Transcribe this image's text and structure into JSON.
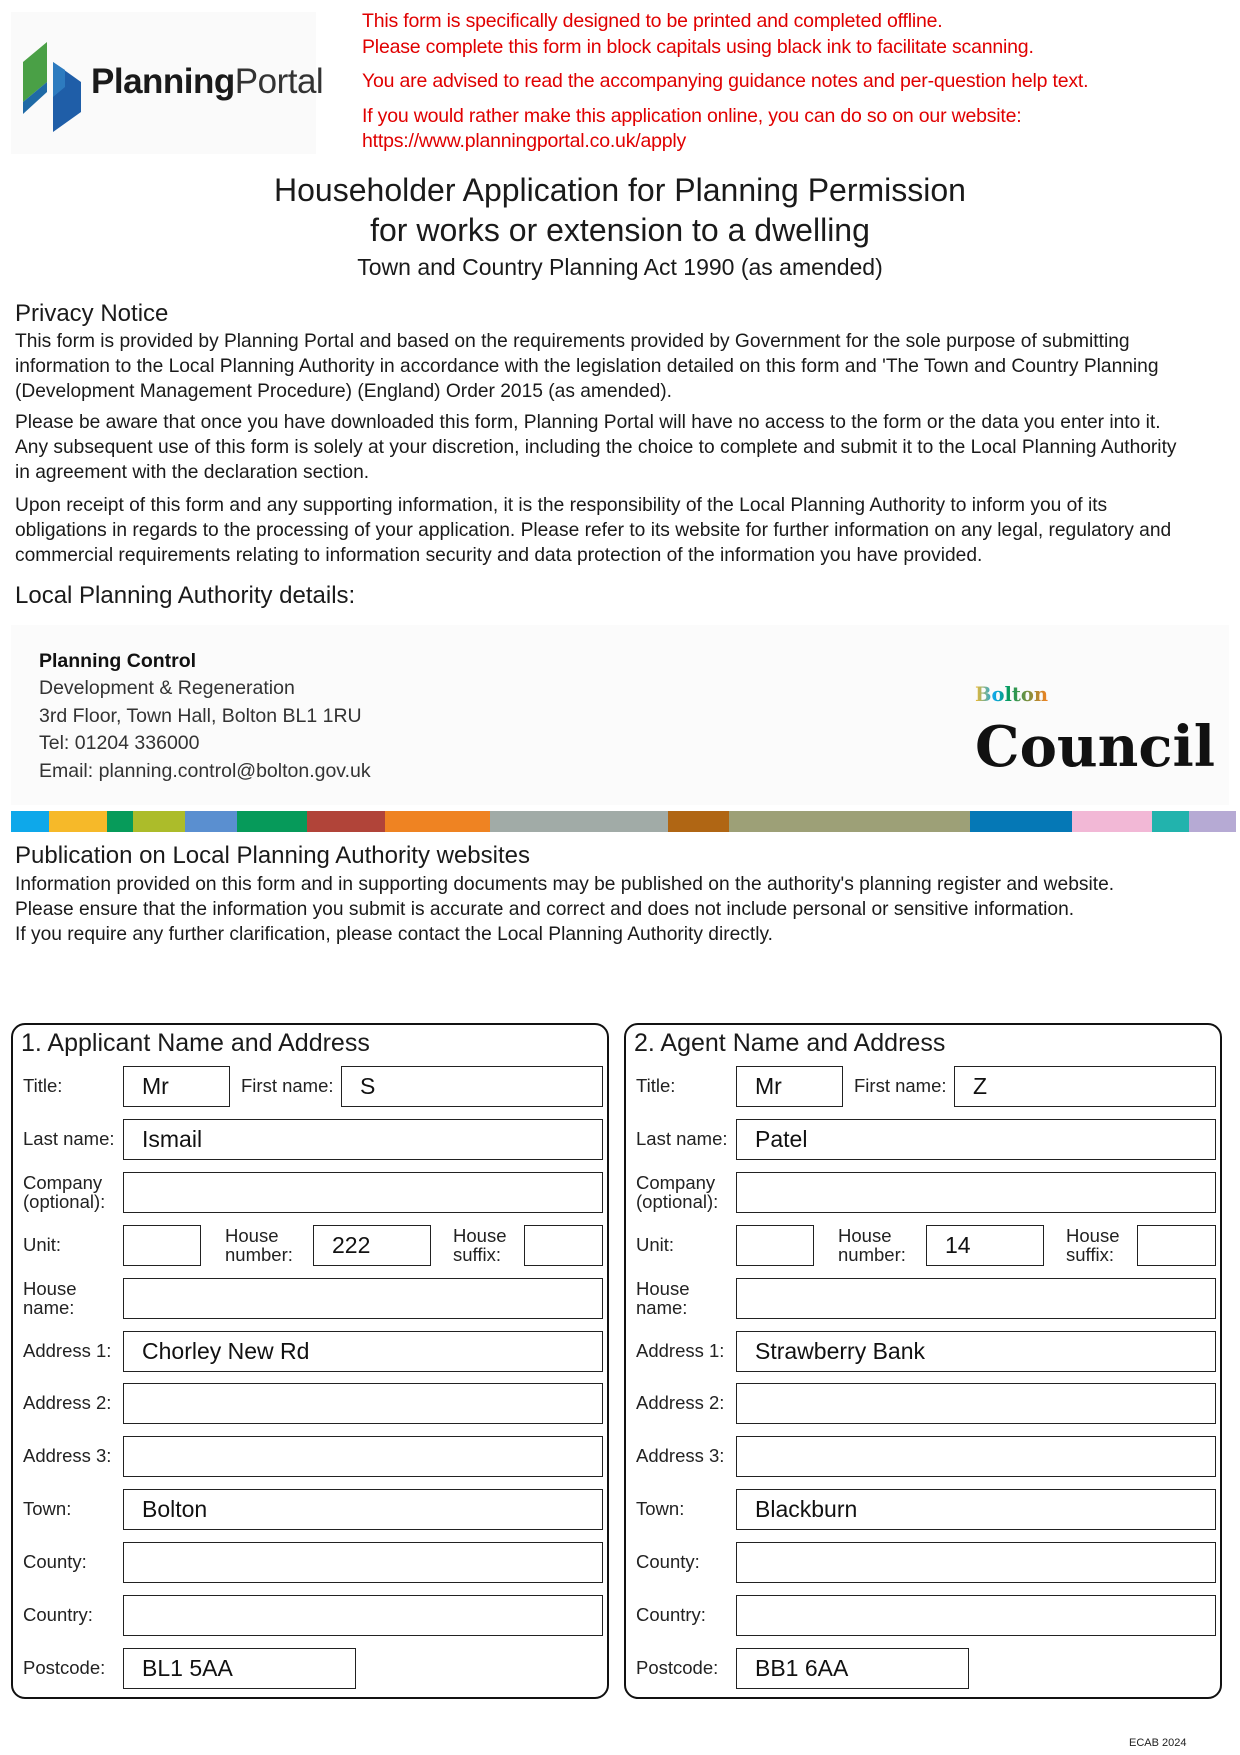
{
  "header": {
    "logo_text_bold": "Planning",
    "logo_text_light": "Portal",
    "notices": [
      "This form is specifically designed to be printed and completed offline.",
      "Please complete this form in block capitals using black ink to facilitate scanning.",
      "You are advised to read the accompanying guidance notes and per-question help text.",
      "If you would rather make this application online, you can do so on our website:",
      "https://www.planningportal.co.uk/apply"
    ],
    "notice_color": "#e00000"
  },
  "title": {
    "line1": "Householder Application for Planning Permission",
    "line2": "for works or extension to a dwelling",
    "subtitle": "Town and Country Planning Act 1990 (as amended)"
  },
  "privacy": {
    "heading": "Privacy Notice",
    "paragraphs": [
      [
        "This form is provided by Planning Portal and based on the requirements provided by Government for the sole purpose of submitting",
        "information to the Local Planning Authority in accordance with the legislation detailed on this form and 'The Town and Country Planning",
        "(Development Management Procedure) (England) Order 2015 (as amended)."
      ],
      [
        "Please be aware that once you have downloaded this form, Planning Portal will have no access to the form or the data you  enter into it.",
        "Any subsequent use of this form is solely at your discretion, including the choice to complete and submit it to the Local Planning Authority",
        "in agreement with the declaration section."
      ],
      [
        "Upon receipt of this form and any supporting  information, it is the responsibility of the Local Planning Authority to inform you of its",
        "obligations in regards to the processing of your application. Please refer to its website for further information on any legal, regulatory and",
        "commercial requirements relating to information security and data protection of the information you have provided."
      ]
    ]
  },
  "lpa": {
    "heading": "Local Planning Authority details:",
    "name": "Planning Control",
    "lines": [
      "Development & Regeneration",
      "3rd Floor, Town Hall, Bolton BL1 1RU",
      "Tel: 01204 336000",
      "Email: planning.control@bolton.gov.uk"
    ],
    "logo_line1": "Bolton",
    "logo_line2": "Council",
    "stripe_colors": [
      "#0ea8ea",
      "#f6b929",
      "#079b5a",
      "#acbc2a",
      "#5a8fd0",
      "#069a5a",
      "#b14439",
      "#ef8322",
      "#a1aba7",
      "#b06614",
      "#9da077",
      "#0578b6",
      "#f2b8d6",
      "#22b3ad",
      "#b6aad4"
    ]
  },
  "publication": {
    "heading": "Publication on Local Planning Authority websites",
    "lines": [
      "Information provided on this form and in supporting documents may be published on the authority's planning register and website.",
      "Please ensure that the information you submit is accurate and correct and does not include personal or sensitive information.",
      "If you require any further clarification, please contact the Local Planning Authority directly."
    ]
  },
  "sections": [
    {
      "heading": "1.  Applicant Name and Address",
      "labels": {
        "title": "Title:",
        "first_name": "First name:",
        "last_name": "Last name:",
        "company": "Company\n(optional):",
        "unit": "Unit:",
        "house_number": "House\nnumber:",
        "house_suffix": "House\nsuffix:",
        "house_name": "House\nname:",
        "address1": "Address 1:",
        "address2": "Address 2:",
        "address3": "Address 3:",
        "town": "Town:",
        "county": "County:",
        "country": "Country:",
        "postcode": "Postcode:"
      },
      "values": {
        "title": "Mr",
        "first_name": "S",
        "last_name": "Ismail",
        "company": "",
        "unit": "",
        "house_number": "222",
        "house_suffix": "",
        "house_name": "",
        "address1": "Chorley New Rd",
        "address2": "",
        "address3": "",
        "town": "Bolton",
        "county": "",
        "country": "",
        "postcode": "BL1 5AA"
      }
    },
    {
      "heading": "2.  Agent Name and Address",
      "labels": {
        "title": "Title:",
        "first_name": "First name:",
        "last_name": "Last name:",
        "company": "Company\n(optional):",
        "unit": "Unit:",
        "house_number": "House\nnumber:",
        "house_suffix": "House\nsuffix:",
        "house_name": "House\nname:",
        "address1": "Address 1:",
        "address2": "Address 2:",
        "address3": "Address 3:",
        "town": "Town:",
        "county": "County:",
        "country": "Country:",
        "postcode": "Postcode:"
      },
      "values": {
        "title": "Mr",
        "first_name": "Z",
        "last_name": "Patel",
        "company": "",
        "unit": "",
        "house_number": "14",
        "house_suffix": "",
        "house_name": "",
        "address1": "Strawberry Bank",
        "address2": "",
        "address3": "",
        "town": "Blackburn",
        "county": "",
        "country": "",
        "postcode": "BB1 6AA"
      }
    }
  ],
  "footer": {
    "code": "ECAB 2024"
  }
}
